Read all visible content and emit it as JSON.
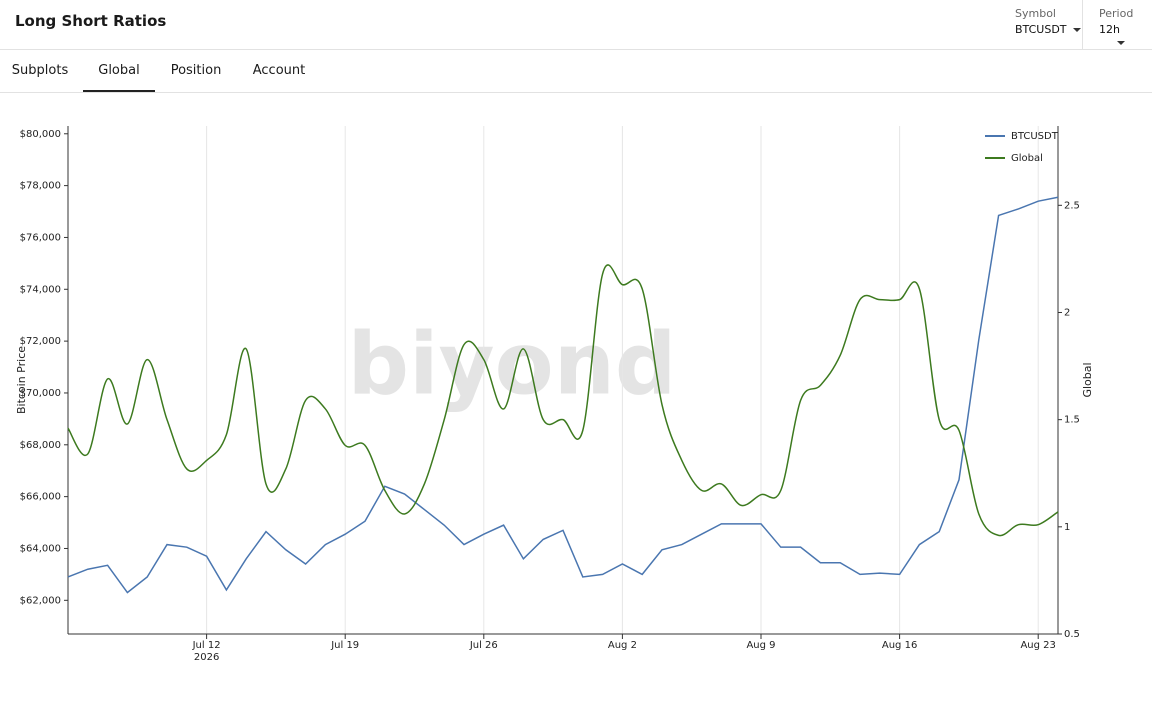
{
  "header": {
    "title": "Long Short Ratios",
    "symbol_label": "Symbol",
    "symbol": "BTCUSDT",
    "period_label": "Period",
    "period": "12h"
  },
  "tabs": [
    {
      "label": "Subplots",
      "active": false
    },
    {
      "label": "Global",
      "active": true
    },
    {
      "label": "Position",
      "active": false
    },
    {
      "label": "Account",
      "active": false
    }
  ],
  "chart_data": {
    "type": "line",
    "ylabel": "Bitcoin Price",
    "y2label": "Global",
    "watermark": "biyond",
    "legend": "upper right",
    "x": [
      "2026-07-05",
      "2026-07-06",
      "2026-07-07",
      "2026-07-08",
      "2026-07-09",
      "2026-07-10",
      "2026-07-11",
      "2026-07-12",
      "2026-07-13",
      "2026-07-14",
      "2026-07-15",
      "2026-07-16",
      "2026-07-17",
      "2026-07-18",
      "2026-07-19",
      "2026-07-20",
      "2026-07-21",
      "2026-07-22",
      "2026-07-23",
      "2026-07-24",
      "2026-07-25",
      "2026-07-26",
      "2026-07-27",
      "2026-07-28",
      "2026-07-29",
      "2026-07-30",
      "2026-07-31",
      "2026-08-01",
      "2026-08-02",
      "2026-08-03",
      "2026-08-04",
      "2026-08-05",
      "2026-08-06",
      "2026-08-07",
      "2026-08-08",
      "2026-08-09",
      "2026-08-10",
      "2026-08-11",
      "2026-08-12",
      "2026-08-13",
      "2026-08-14",
      "2026-08-15",
      "2026-08-16",
      "2026-08-17",
      "2026-08-18",
      "2026-08-19",
      "2026-08-20",
      "2026-08-21",
      "2026-08-22",
      "2026-08-23",
      "2026-08-24"
    ],
    "xlim": [
      "2026-07-05",
      "2026-08-24"
    ],
    "xticks": [
      {
        "value": "2026-07-12",
        "label": "Jul 12",
        "sublabel": "2026"
      },
      {
        "value": "2026-07-19",
        "label": "Jul 19"
      },
      {
        "value": "2026-07-26",
        "label": "Jul 26"
      },
      {
        "value": "2026-08-02",
        "label": "Aug 2"
      },
      {
        "value": "2026-08-09",
        "label": "Aug 9"
      },
      {
        "value": "2026-08-16",
        "label": "Aug 16"
      },
      {
        "value": "2026-08-23",
        "label": "Aug 23"
      }
    ],
    "ylim": [
      60700,
      80300
    ],
    "yticks": [
      {
        "value": 62000,
        "label": "$62,000"
      },
      {
        "value": 64000,
        "label": "$64,000"
      },
      {
        "value": 66000,
        "label": "$66,000"
      },
      {
        "value": 68000,
        "label": "$68,000"
      },
      {
        "value": 70000,
        "label": "$70,000"
      },
      {
        "value": 72000,
        "label": "$72,000"
      },
      {
        "value": 74000,
        "label": "$74,000"
      },
      {
        "value": 76000,
        "label": "$76,000"
      },
      {
        "value": 78000,
        "label": "$78,000"
      },
      {
        "value": 80000,
        "label": "$80,000"
      }
    ],
    "y2lim": [
      0.5,
      2.87
    ],
    "y2ticks": [
      0.5,
      1,
      1.5,
      2,
      2.5
    ],
    "series": [
      {
        "name": "BTCUSDT",
        "color": "#4a76b0",
        "curve": "straight",
        "values": [
          62900,
          63200,
          63350,
          62300,
          62900,
          64150,
          64050,
          63700,
          62400,
          63600,
          64650,
          63950,
          63400,
          64150,
          64550,
          65050,
          66400,
          66100,
          65500,
          64900,
          64150,
          64550,
          64900,
          63600,
          64350,
          64700,
          62900,
          63000,
          63400,
          63000,
          63950,
          64150,
          64550,
          64950,
          64950,
          64950,
          64050,
          64050,
          63450,
          63450,
          63000,
          63050,
          63000,
          64150,
          64650,
          66650,
          72050,
          76850,
          77100,
          77400,
          77550
        ]
      },
      {
        "name": "Global",
        "color": "#3d7a1f",
        "axis": "y2",
        "curve": "smooth",
        "values": [
          1.46,
          1.34,
          1.69,
          1.48,
          1.78,
          1.5,
          1.27,
          1.31,
          1.43,
          1.83,
          1.2,
          1.27,
          1.59,
          1.55,
          1.38,
          1.38,
          1.17,
          1.06,
          1.2,
          1.5,
          1.85,
          1.78,
          1.55,
          1.83,
          1.5,
          1.5,
          1.45,
          2.18,
          2.13,
          2.11,
          1.57,
          1.31,
          1.17,
          1.2,
          1.1,
          1.15,
          1.17,
          1.59,
          1.66,
          1.8,
          2.06,
          2.06,
          2.06,
          2.11,
          1.5,
          1.45,
          1.06,
          0.96,
          1.01,
          1.01,
          1.07
        ]
      }
    ]
  }
}
